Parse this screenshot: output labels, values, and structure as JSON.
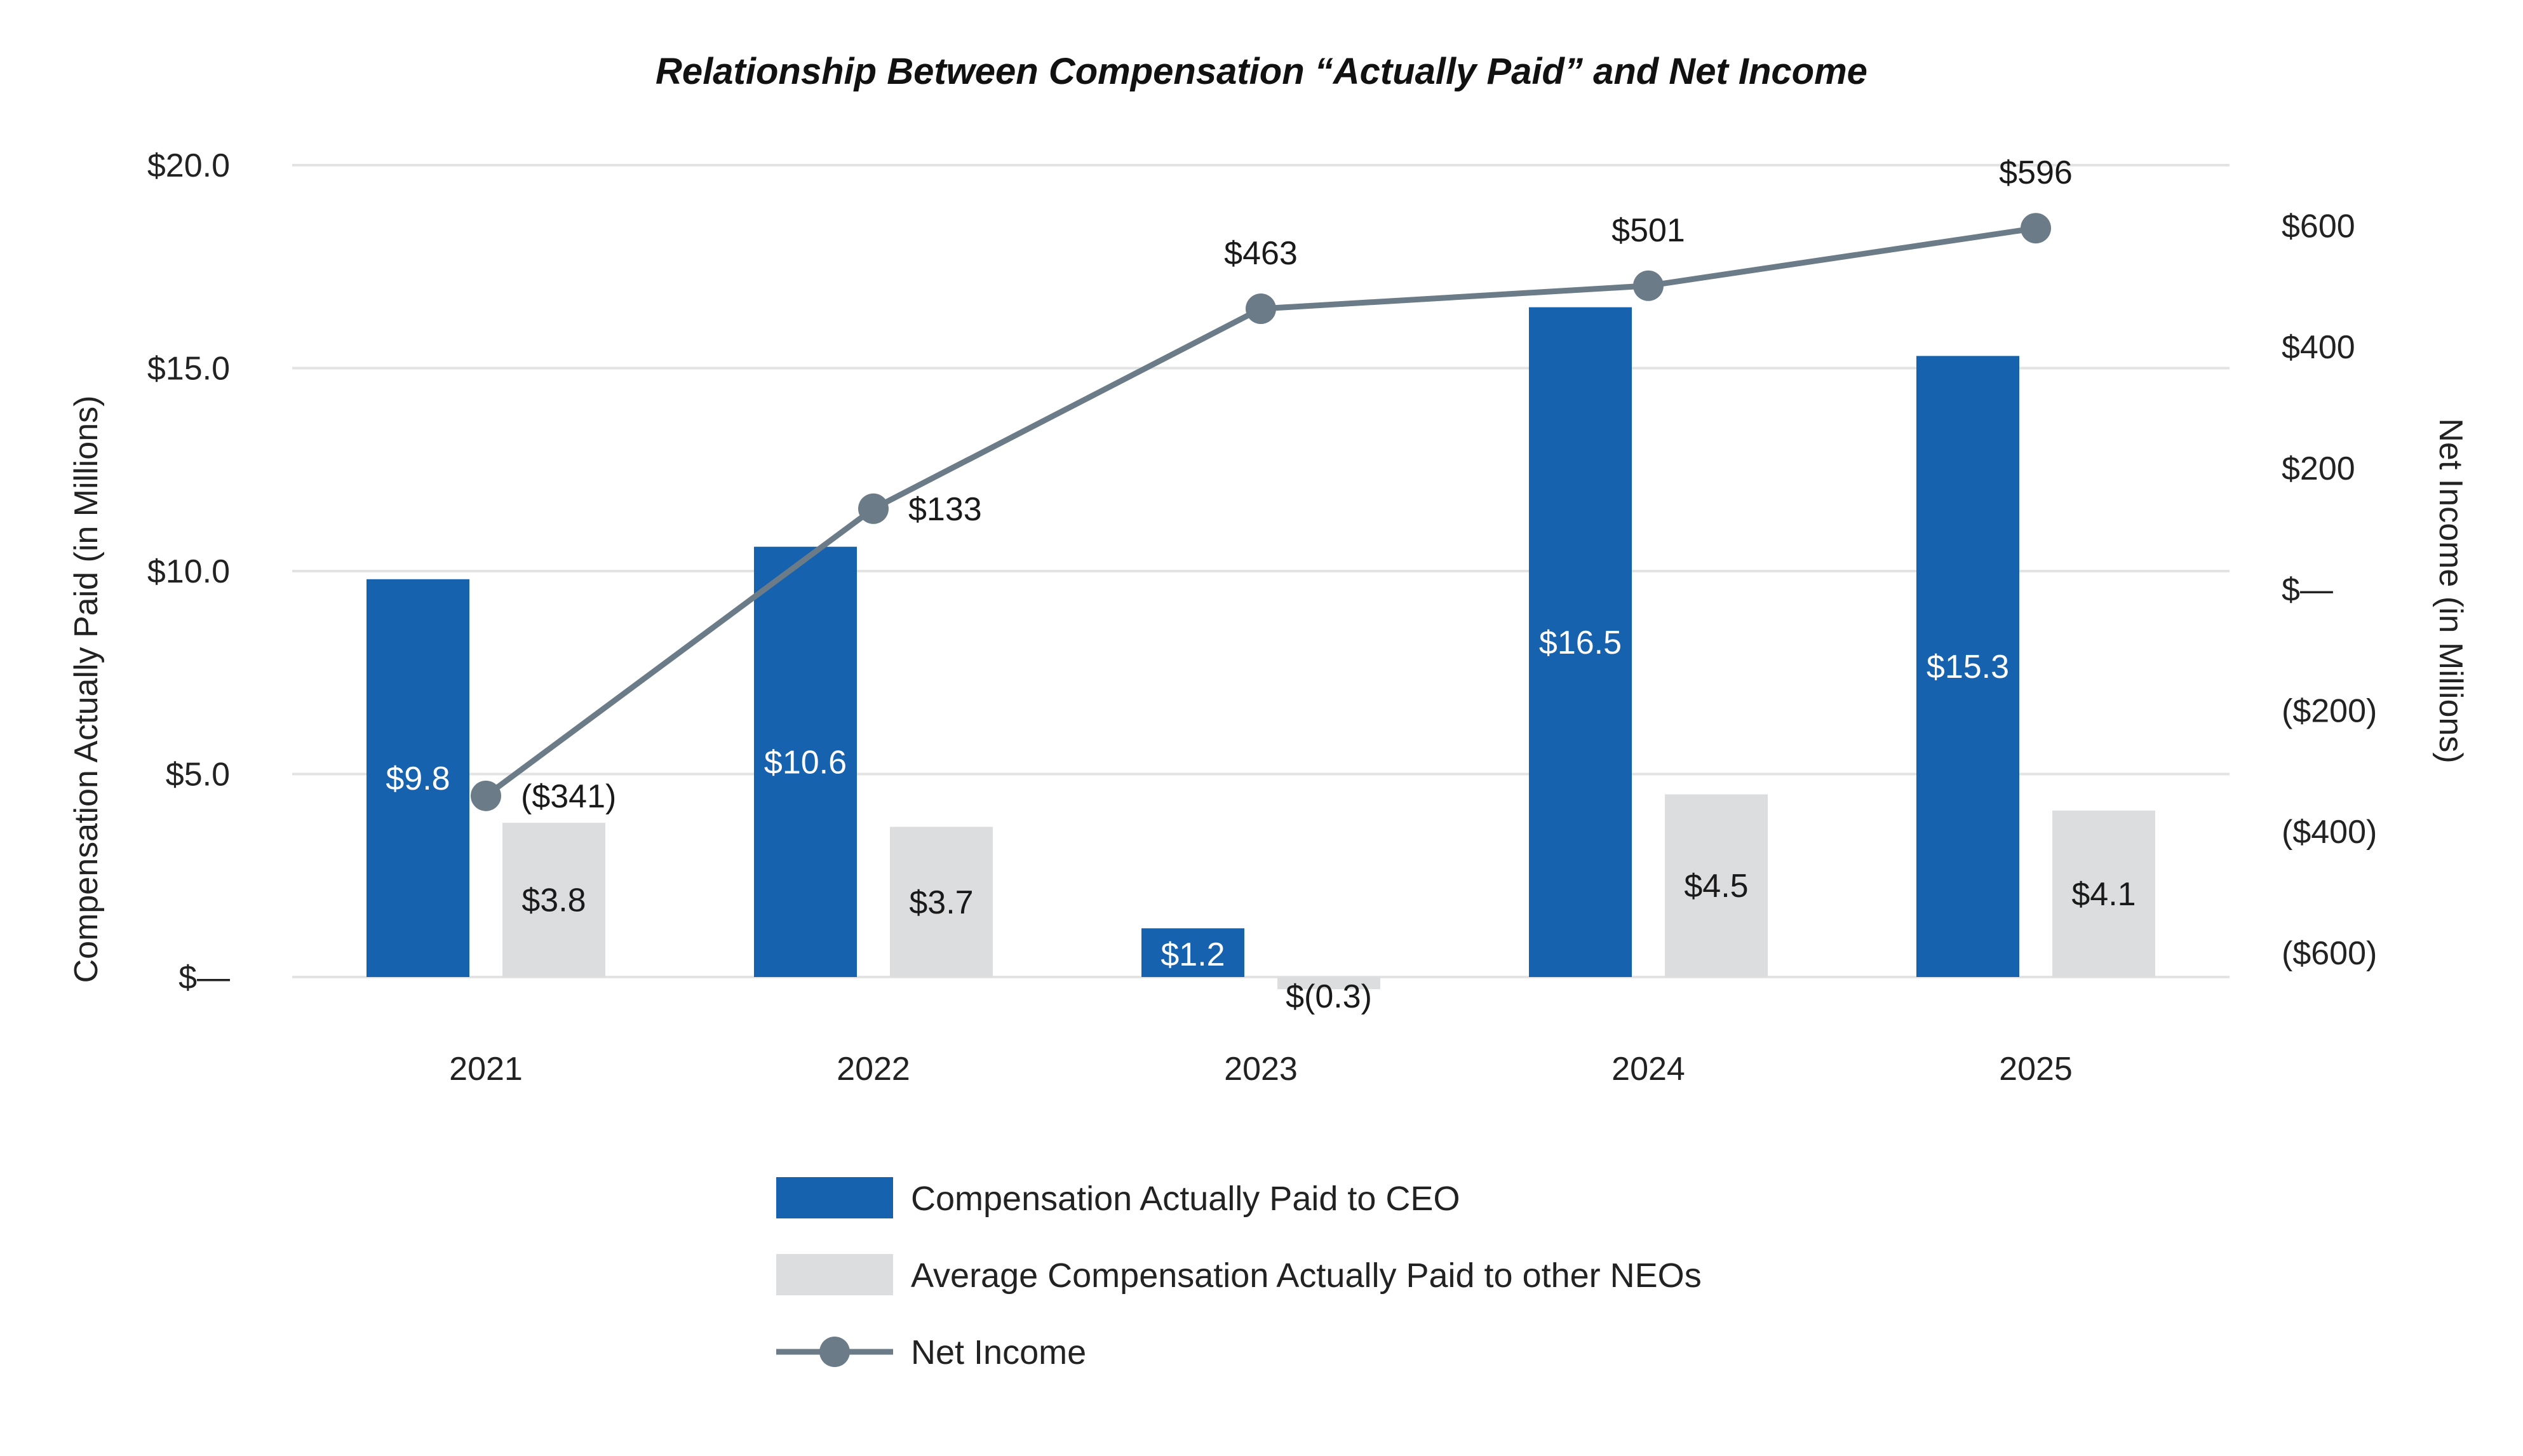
{
  "chart_data": {
    "type": "bar",
    "title": "Relationship Between Compensation “Actually Paid” and Net Income",
    "ylabel": "Compensation Actually Paid (in Millions)",
    "y2label": "Net Income (in Millions)",
    "categories": [
      "2021",
      "2022",
      "2023",
      "2024",
      "2025"
    ],
    "ylim": [
      0,
      20
    ],
    "y2lim": [
      -640,
      700
    ],
    "yticks": [
      {
        "value": 0,
        "label": "$—"
      },
      {
        "value": 5,
        "label": "$5.0"
      },
      {
        "value": 10,
        "label": "$10.0"
      },
      {
        "value": 15,
        "label": "$15.0"
      },
      {
        "value": 20,
        "label": "$20.0"
      }
    ],
    "y2ticks": [
      {
        "value": -600,
        "label": "($600)"
      },
      {
        "value": -400,
        "label": "($400)"
      },
      {
        "value": -200,
        "label": "($200)"
      },
      {
        "value": 0,
        "label": "$—"
      },
      {
        "value": 200,
        "label": "$200"
      },
      {
        "value": 400,
        "label": "$400"
      },
      {
        "value": 600,
        "label": "$600"
      }
    ],
    "grid": true,
    "legend_position": "bottom-center",
    "series": [
      {
        "name": "Compensation Actually Paid to CEO",
        "type": "bar",
        "axis": "left",
        "color": "#1662ae",
        "values": [
          9.8,
          10.6,
          1.2,
          16.5,
          15.3
        ],
        "labels": [
          "$9.8",
          "$10.6",
          "$1.2",
          "$16.5",
          "$15.3"
        ]
      },
      {
        "name": "Average Compensation Actually Paid to other NEOs",
        "type": "bar",
        "axis": "left",
        "color": "#dcddde",
        "values": [
          3.8,
          3.7,
          -0.3,
          4.5,
          4.1
        ],
        "labels": [
          "$3.8",
          "$3.7",
          "$(0.3)",
          "$4.5",
          "$4.1"
        ]
      },
      {
        "name": "Net Income",
        "type": "line",
        "axis": "right",
        "color": "#6b7b87",
        "values": [
          -341,
          133,
          463,
          501,
          596
        ],
        "labels": [
          "($341)",
          "$133",
          "$463",
          "$501",
          "$596"
        ]
      }
    ]
  }
}
